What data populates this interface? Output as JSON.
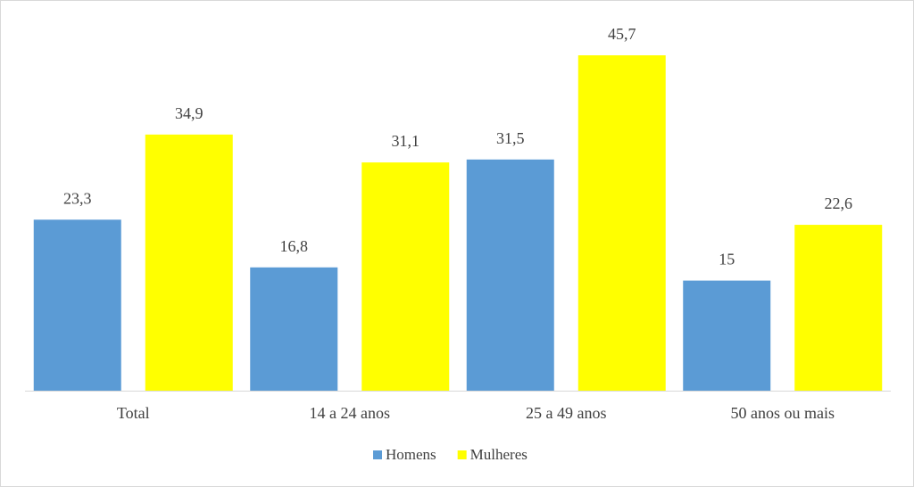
{
  "chart_data": {
    "type": "bar",
    "categories": [
      "Total",
      "14 a 24 anos",
      "25 a 49 anos",
      "50 anos ou mais"
    ],
    "series": [
      {
        "name": "Homens",
        "color": "#5b9bd5",
        "values": [
          23.3,
          16.8,
          31.5,
          15
        ],
        "value_labels": [
          "23,3",
          "16,8",
          "31,5",
          "15"
        ]
      },
      {
        "name": "Mulheres",
        "color": "#ffff00",
        "values": [
          34.9,
          31.1,
          45.7,
          22.6
        ],
        "value_labels": [
          "34,9",
          "31,1",
          "45,7",
          "22,6"
        ]
      }
    ],
    "legend": "bottom"
  }
}
